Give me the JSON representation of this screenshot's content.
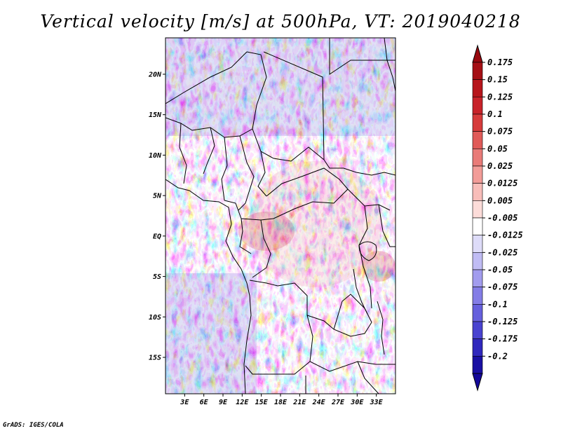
{
  "title": "Vertical velocity [m/s] at 500hPa, VT: 2019040218",
  "credit": "GrADS: IGES/COLA",
  "map": {
    "type": "contour-map",
    "field": "vertical velocity",
    "units": "m/s",
    "level": "500hPa",
    "valid_time": "2019040218",
    "lon_range": [
      0,
      36
    ],
    "lat_range": [
      -19.5,
      24.5
    ],
    "lon_ticks": [
      {
        "value": 3,
        "label": "3E"
      },
      {
        "value": 6,
        "label": "6E"
      },
      {
        "value": 9,
        "label": "9E"
      },
      {
        "value": 12,
        "label": "12E"
      },
      {
        "value": 15,
        "label": "15E"
      },
      {
        "value": 18,
        "label": "18E"
      },
      {
        "value": 21,
        "label": "21E"
      },
      {
        "value": 24,
        "label": "24E"
      },
      {
        "value": 27,
        "label": "27E"
      },
      {
        "value": 30,
        "label": "30E"
      },
      {
        "value": 33,
        "label": "33E"
      }
    ],
    "lat_ticks": [
      {
        "value": 20,
        "label": "20N"
      },
      {
        "value": 15,
        "label": "15N"
      },
      {
        "value": 10,
        "label": "10N"
      },
      {
        "value": 5,
        "label": "5N"
      },
      {
        "value": 0,
        "label": "EQ"
      },
      {
        "value": -5,
        "label": "5S"
      },
      {
        "value": -10,
        "label": "10S"
      },
      {
        "value": -15,
        "label": "15S"
      }
    ]
  },
  "colorbar": {
    "levels": [
      {
        "label": "0.175",
        "color": "#a50f15"
      },
      {
        "label": "0.15",
        "color": "#b7161c"
      },
      {
        "label": "0.125",
        "color": "#c8232a"
      },
      {
        "label": "0.1",
        "color": "#d63b3b"
      },
      {
        "label": "0.075",
        "color": "#e05a58"
      },
      {
        "label": "0.05",
        "color": "#e97b78"
      },
      {
        "label": "0.025",
        "color": "#f29c98"
      },
      {
        "label": "0.0125",
        "color": "#f8bdb9"
      },
      {
        "label": "0.005",
        "color": "#fcdcd9"
      },
      {
        "label": "-0.005",
        "color": "#ffffff"
      },
      {
        "label": "-0.0125",
        "color": "#dedcf9"
      },
      {
        "label": "-0.025",
        "color": "#c0bcf4"
      },
      {
        "label": "-0.05",
        "color": "#a29cee"
      },
      {
        "label": "-0.075",
        "color": "#847de6"
      },
      {
        "label": "-0.1",
        "color": "#6660dd"
      },
      {
        "label": "-0.125",
        "color": "#4943d0"
      },
      {
        "label": "-0.175",
        "color": "#3028bd"
      },
      {
        "label": "-0.2",
        "color": "#1a10a3"
      }
    ],
    "top_color": "#98080f",
    "bottom_color": "#14089a"
  },
  "colors": {
    "frame": "#000000",
    "borders": "#000000"
  }
}
